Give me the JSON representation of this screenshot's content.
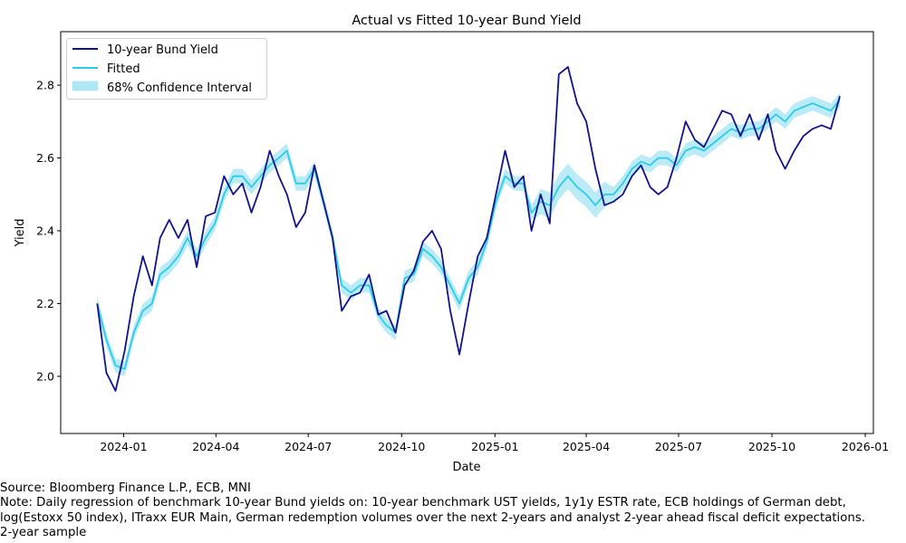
{
  "chart_data": {
    "type": "line",
    "title": "Actual vs Fitted 10-year Bund Yield",
    "xlabel": "Date",
    "ylabel": "Yield",
    "xlim": [
      "2023-10-31",
      "2026-01-09"
    ],
    "ylim": [
      1.843,
      2.947
    ],
    "xticks": [
      "2024-01",
      "2024-04",
      "2024-07",
      "2024-10",
      "2025-01",
      "2025-04",
      "2025-07",
      "2025-10",
      "2026-01"
    ],
    "yticks": [
      "2.0",
      "2.2",
      "2.4",
      "2.6",
      "2.8"
    ],
    "grid": false,
    "legend_position": "top-left",
    "colors": {
      "actual": "#12128a",
      "fitted": "#2ccbe8",
      "ci": "#aee8f4"
    },
    "legend": [
      "10-year Bund Yield",
      "Fitted",
      "68% Confidence Interval"
    ],
    "x": [
      "2023-12-06",
      "2023-12-15",
      "2023-12-24",
      "2024-01-02",
      "2024-01-11",
      "2024-01-20",
      "2024-01-29",
      "2024-02-06",
      "2024-02-15",
      "2024-02-24",
      "2024-03-04",
      "2024-03-13",
      "2024-03-22",
      "2024-03-31",
      "2024-04-09",
      "2024-04-18",
      "2024-04-27",
      "2024-05-06",
      "2024-05-15",
      "2024-05-24",
      "2024-06-02",
      "2024-06-10",
      "2024-06-19",
      "2024-06-28",
      "2024-07-07",
      "2024-07-16",
      "2024-07-25",
      "2024-08-03",
      "2024-08-12",
      "2024-08-21",
      "2024-08-30",
      "2024-09-08",
      "2024-09-16",
      "2024-09-25",
      "2024-10-04",
      "2024-10-13",
      "2024-10-22",
      "2024-10-31",
      "2024-11-09",
      "2024-11-18",
      "2024-11-27",
      "2024-12-06",
      "2024-12-15",
      "2024-12-24",
      "2025-01-02",
      "2025-01-11",
      "2025-01-20",
      "2025-01-29",
      "2025-02-06",
      "2025-02-15",
      "2025-02-24",
      "2025-03-05",
      "2025-03-14",
      "2025-03-23",
      "2025-04-01",
      "2025-04-10",
      "2025-04-19",
      "2025-04-28",
      "2025-05-07",
      "2025-05-16",
      "2025-05-25",
      "2025-06-03",
      "2025-06-11",
      "2025-06-20",
      "2025-06-29",
      "2025-07-08",
      "2025-07-17",
      "2025-07-26",
      "2025-08-04",
      "2025-08-13",
      "2025-08-22",
      "2025-08-31",
      "2025-09-09",
      "2025-09-18",
      "2025-09-27",
      "2025-10-05",
      "2025-10-14",
      "2025-10-23",
      "2025-11-01",
      "2025-11-10",
      "2025-11-19",
      "2025-11-28",
      "2025-12-07"
    ],
    "series": [
      {
        "name": "10-year Bund Yield",
        "values": [
          2.2,
          2.01,
          1.96,
          2.07,
          2.22,
          2.33,
          2.25,
          2.38,
          2.43,
          2.38,
          2.43,
          2.3,
          2.44,
          2.45,
          2.55,
          2.5,
          2.53,
          2.45,
          2.52,
          2.62,
          2.55,
          2.5,
          2.41,
          2.45,
          2.58,
          2.48,
          2.38,
          2.18,
          2.22,
          2.23,
          2.28,
          2.17,
          2.18,
          2.12,
          2.25,
          2.29,
          2.37,
          2.4,
          2.35,
          2.18,
          2.06,
          2.2,
          2.33,
          2.38,
          2.5,
          2.62,
          2.52,
          2.55,
          2.4,
          2.5,
          2.42,
          2.83,
          2.85,
          2.75,
          2.7,
          2.57,
          2.47,
          2.48,
          2.5,
          2.55,
          2.58,
          2.52,
          2.5,
          2.52,
          2.6,
          2.7,
          2.65,
          2.63,
          2.68,
          2.73,
          2.72,
          2.66,
          2.72,
          2.65,
          2.72,
          2.62,
          2.57,
          2.62,
          2.66,
          2.68,
          2.69,
          2.68,
          2.77
        ]
      },
      {
        "name": "Fitted",
        "values": [
          2.2,
          2.1,
          2.03,
          2.02,
          2.12,
          2.18,
          2.2,
          2.28,
          2.3,
          2.33,
          2.38,
          2.33,
          2.38,
          2.42,
          2.5,
          2.55,
          2.55,
          2.52,
          2.55,
          2.58,
          2.6,
          2.62,
          2.53,
          2.53,
          2.57,
          2.48,
          2.38,
          2.25,
          2.23,
          2.25,
          2.25,
          2.17,
          2.14,
          2.12,
          2.27,
          2.28,
          2.35,
          2.33,
          2.3,
          2.25,
          2.2,
          2.27,
          2.3,
          2.37,
          2.48,
          2.55,
          2.53,
          2.53,
          2.45,
          2.48,
          2.47,
          2.52,
          2.55,
          2.52,
          2.5,
          2.47,
          2.5,
          2.5,
          2.53,
          2.57,
          2.59,
          2.58,
          2.6,
          2.6,
          2.58,
          2.62,
          2.63,
          2.62,
          2.64,
          2.66,
          2.68,
          2.67,
          2.68,
          2.68,
          2.7,
          2.72,
          2.7,
          2.73,
          2.74,
          2.75,
          2.74,
          2.73,
          2.76
        ]
      }
    ],
    "ci_lower": [
      2.18,
      2.08,
      2.01,
      2.0,
      2.1,
      2.16,
      2.18,
      2.26,
      2.28,
      2.31,
      2.36,
      2.31,
      2.36,
      2.4,
      2.48,
      2.53,
      2.53,
      2.5,
      2.53,
      2.56,
      2.58,
      2.6,
      2.51,
      2.51,
      2.55,
      2.46,
      2.36,
      2.23,
      2.21,
      2.23,
      2.23,
      2.15,
      2.12,
      2.1,
      2.25,
      2.26,
      2.33,
      2.31,
      2.28,
      2.23,
      2.18,
      2.25,
      2.28,
      2.35,
      2.46,
      2.53,
      2.51,
      2.51,
      2.43,
      2.445,
      2.435,
      2.485,
      2.515,
      2.485,
      2.465,
      2.435,
      2.465,
      2.48,
      2.51,
      2.55,
      2.57,
      2.56,
      2.58,
      2.58,
      2.56,
      2.6,
      2.61,
      2.6,
      2.62,
      2.64,
      2.66,
      2.65,
      2.66,
      2.66,
      2.68,
      2.7,
      2.68,
      2.71,
      2.72,
      2.73,
      2.72,
      2.71,
      2.74
    ],
    "ci_upper": [
      2.22,
      2.12,
      2.05,
      2.04,
      2.14,
      2.2,
      2.22,
      2.3,
      2.32,
      2.35,
      2.4,
      2.35,
      2.4,
      2.44,
      2.52,
      2.57,
      2.57,
      2.54,
      2.57,
      2.6,
      2.62,
      2.64,
      2.55,
      2.55,
      2.59,
      2.5,
      2.4,
      2.27,
      2.25,
      2.27,
      2.27,
      2.19,
      2.16,
      2.14,
      2.29,
      2.3,
      2.37,
      2.35,
      2.32,
      2.27,
      2.22,
      2.29,
      2.32,
      2.39,
      2.5,
      2.57,
      2.55,
      2.55,
      2.47,
      2.515,
      2.505,
      2.555,
      2.585,
      2.555,
      2.535,
      2.505,
      2.535,
      2.52,
      2.55,
      2.59,
      2.61,
      2.6,
      2.62,
      2.62,
      2.6,
      2.64,
      2.65,
      2.64,
      2.66,
      2.68,
      2.7,
      2.69,
      2.7,
      2.7,
      2.72,
      2.74,
      2.72,
      2.75,
      2.76,
      2.77,
      2.76,
      2.75,
      2.78
    ]
  },
  "footer": {
    "source": "Source: Bloomberg Finance L.P., ECB, MNI",
    "note": "Note: Daily regression of benchmark 10-year Bund yields on: 10-year benchmark UST yields, 1y1y ESTR rate, ECB holdings of German debt,",
    "note2": "log(Estoxx 50 index), ITraxx EUR Main, German redemption volumes over the next 2-years and analyst 2-year ahead fiscal deficit expectations.",
    "note3": "2-year sample"
  }
}
